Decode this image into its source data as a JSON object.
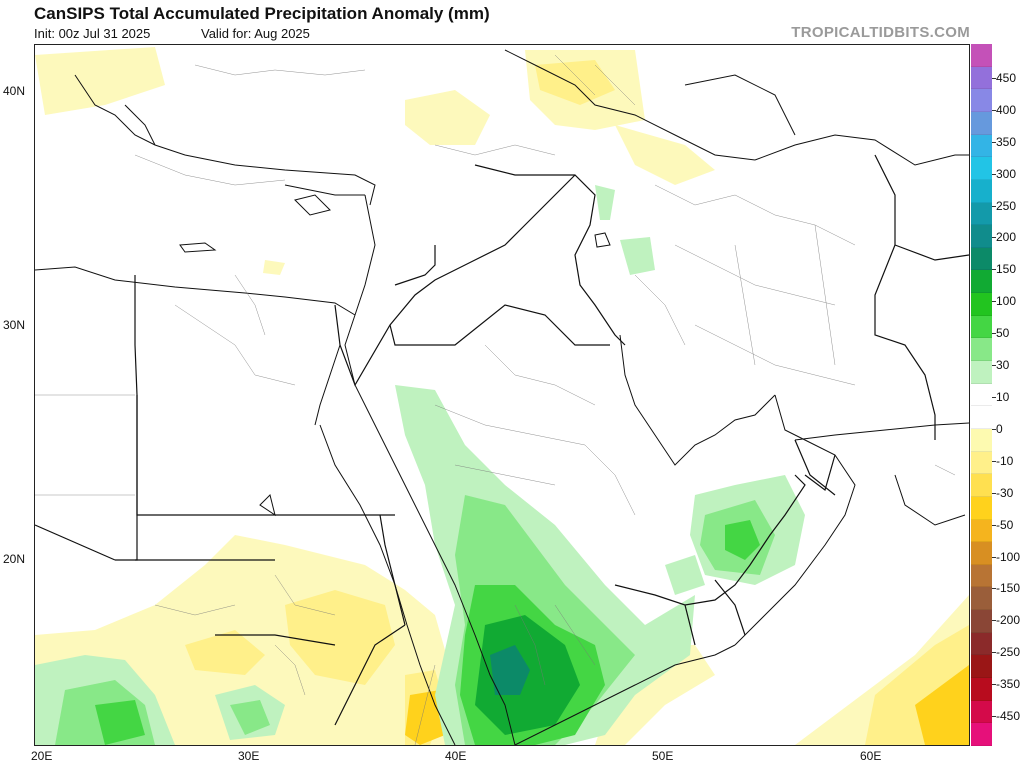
{
  "header": {
    "title": "CanSIPS Total Accumulated Precipitation Anomaly (mm)",
    "init": "Init: 00z Jul 31 2025",
    "valid": "Valid for: Aug 2025",
    "brand": "TROPICALTIDBITS.COM"
  },
  "map": {
    "lon_labels": [
      "20E",
      "30E",
      "40E",
      "50E",
      "60E"
    ],
    "lat_labels": [
      "40N",
      "30N",
      "20N"
    ]
  },
  "colorbar": {
    "labels": [
      "450",
      "400",
      "350",
      "300",
      "250",
      "200",
      "150",
      "100",
      "50",
      "30",
      "10",
      "0",
      "-10",
      "-30",
      "-50",
      "-100",
      "-150",
      "-200",
      "-250",
      "-350",
      "-450"
    ],
    "colors": [
      "#c451b8",
      "#9370db",
      "#8888e6",
      "#6699dd",
      "#33b4e6",
      "#22c4e6",
      "#17b0cc",
      "#139aaa",
      "#108c8c",
      "#0c8a68",
      "#11aa33",
      "#22c41f",
      "#44d644",
      "#88e888",
      "#bff2bf",
      "#ffffff",
      "#ffffff",
      "#fdfab0",
      "#fff08a",
      "#ffe050",
      "#ffd21c",
      "#f5b41e",
      "#d88f22",
      "#b87434",
      "#9a5e3a",
      "#8a4636",
      "#8b2a2a",
      "#9a1616",
      "#b80c1e",
      "#d40a4a",
      "#e6107a"
    ]
  }
}
